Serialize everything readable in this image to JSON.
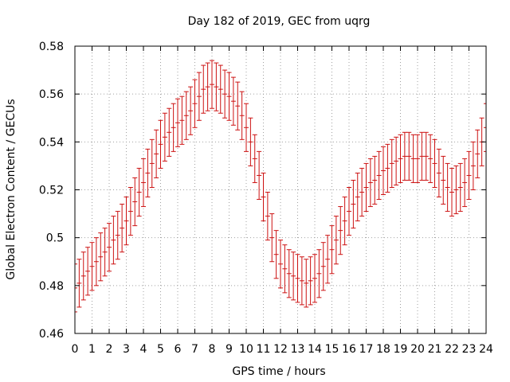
{
  "chart_data": {
    "type": "scatter",
    "title": "Day 182 of 2019, GEC from uqrg",
    "xlabel": "GPS time / hours",
    "ylabel": "Global Electron Content / GECUs",
    "xlim": [
      0,
      24
    ],
    "ylim": [
      0.46,
      0.58
    ],
    "xticks": [
      0,
      1,
      2,
      3,
      4,
      5,
      6,
      7,
      8,
      9,
      10,
      11,
      12,
      13,
      14,
      15,
      16,
      17,
      18,
      19,
      20,
      21,
      22,
      23,
      24
    ],
    "yticks": [
      0.46,
      0.48,
      0.5,
      0.52,
      0.54,
      0.56,
      0.58
    ],
    "ytick_labels": [
      "0.46",
      "0.48",
      "0.5",
      "0.52",
      "0.54",
      "0.56",
      "0.58"
    ],
    "grid": true,
    "series_color": "#cc1111",
    "error_half_width": 0.01,
    "series": [
      {
        "name": "GEC",
        "x": [
          0.0,
          0.25,
          0.5,
          0.75,
          1.0,
          1.25,
          1.5,
          1.75,
          2.0,
          2.25,
          2.5,
          2.75,
          3.0,
          3.25,
          3.5,
          3.75,
          4.0,
          4.25,
          4.5,
          4.75,
          5.0,
          5.25,
          5.5,
          5.75,
          6.0,
          6.25,
          6.5,
          6.75,
          7.0,
          7.25,
          7.5,
          7.75,
          8.0,
          8.25,
          8.5,
          8.75,
          9.0,
          9.25,
          9.5,
          9.75,
          10.0,
          10.25,
          10.5,
          10.75,
          11.0,
          11.25,
          11.5,
          11.75,
          12.0,
          12.25,
          12.5,
          12.75,
          13.0,
          13.25,
          13.5,
          13.75,
          14.0,
          14.25,
          14.5,
          14.75,
          15.0,
          15.25,
          15.5,
          15.75,
          16.0,
          16.25,
          16.5,
          16.75,
          17.0,
          17.25,
          17.5,
          17.75,
          18.0,
          18.25,
          18.5,
          18.75,
          19.0,
          19.25,
          19.5,
          19.75,
          20.0,
          20.25,
          20.5,
          20.75,
          21.0,
          21.25,
          21.5,
          21.75,
          22.0,
          22.25,
          22.5,
          22.75,
          23.0,
          23.25,
          23.5,
          23.75,
          24.0
        ],
        "y": [
          0.479,
          0.481,
          0.484,
          0.486,
          0.488,
          0.49,
          0.492,
          0.494,
          0.496,
          0.499,
          0.501,
          0.504,
          0.507,
          0.511,
          0.515,
          0.519,
          0.523,
          0.527,
          0.531,
          0.535,
          0.539,
          0.542,
          0.544,
          0.546,
          0.548,
          0.549,
          0.551,
          0.553,
          0.556,
          0.559,
          0.562,
          0.563,
          0.564,
          0.563,
          0.562,
          0.56,
          0.559,
          0.557,
          0.555,
          0.551,
          0.546,
          0.54,
          0.533,
          0.526,
          0.517,
          0.509,
          0.5,
          0.493,
          0.489,
          0.487,
          0.485,
          0.484,
          0.483,
          0.482,
          0.481,
          0.482,
          0.483,
          0.485,
          0.488,
          0.491,
          0.495,
          0.499,
          0.503,
          0.507,
          0.511,
          0.514,
          0.517,
          0.519,
          0.521,
          0.523,
          0.524,
          0.526,
          0.528,
          0.529,
          0.531,
          0.532,
          0.533,
          0.534,
          0.534,
          0.533,
          0.533,
          0.534,
          0.534,
          0.533,
          0.531,
          0.527,
          0.524,
          0.521,
          0.519,
          0.52,
          0.521,
          0.523,
          0.526,
          0.53,
          0.535,
          0.54,
          0.546
        ]
      }
    ]
  }
}
